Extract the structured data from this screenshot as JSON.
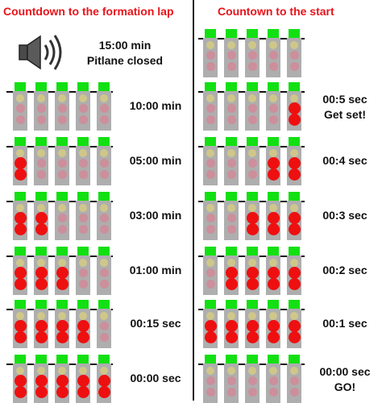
{
  "titles": {
    "left": "Countdown to the formation lap",
    "right": "Countown to the start"
  },
  "intro": {
    "icon": "speaker-icon",
    "line1": "15:00 min",
    "line2": "Pitlane closed"
  },
  "colors": {
    "title": "#e8141b",
    "green_cap": "#12e012",
    "housing": "#aeaeae",
    "amber_lamp": "#cfc78a",
    "unlit_red_lamp": "#cc8f9b",
    "lit_red_lamp": "#ee1010"
  },
  "legend_note": "red lamps lit per light unit (0 = none, 1 = upper red, 2 = both red)",
  "formation_lap": [
    {
      "label": "10:00 min",
      "red": [
        0,
        0,
        0,
        0,
        0
      ]
    },
    {
      "label": "05:00 min",
      "red": [
        2,
        0,
        0,
        0,
        0
      ]
    },
    {
      "label": "03:00 min",
      "red": [
        2,
        2,
        0,
        0,
        0
      ]
    },
    {
      "label": "01:00 min",
      "red": [
        2,
        2,
        2,
        0,
        0
      ]
    },
    {
      "label": "00:15 sec",
      "red": [
        2,
        2,
        2,
        2,
        0
      ]
    },
    {
      "label": "00:00 sec",
      "red": [
        2,
        2,
        2,
        2,
        2
      ]
    }
  ],
  "start": [
    {
      "label": "",
      "red": [
        0,
        0,
        0,
        0,
        0
      ]
    },
    {
      "label": "00:5 sec",
      "label2": "Get set!",
      "red": [
        0,
        0,
        0,
        0,
        2
      ]
    },
    {
      "label": "00:4 sec",
      "red": [
        0,
        0,
        0,
        2,
        2
      ]
    },
    {
      "label": "00:3 sec",
      "red": [
        0,
        0,
        2,
        2,
        2
      ]
    },
    {
      "label": "00:2 sec",
      "red": [
        0,
        2,
        2,
        2,
        2
      ]
    },
    {
      "label": "00:1 sec",
      "red": [
        2,
        2,
        2,
        2,
        2
      ]
    },
    {
      "label": "00:00 sec",
      "label2": "GO!",
      "red": [
        0,
        0,
        0,
        0,
        0
      ]
    }
  ]
}
